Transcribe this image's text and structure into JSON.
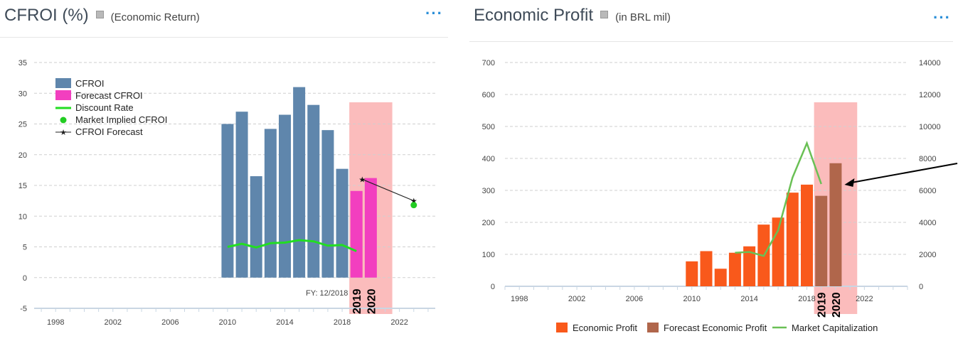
{
  "left": {
    "title": "CFROI (%)",
    "subtitle": "(Economic Return)",
    "menu": "···",
    "fy_label": "FY: 12/2018",
    "highlight_years": [
      "2019",
      "2020"
    ],
    "colors": {
      "cfroi": "#5f86ac",
      "forecast": "#f23fbf",
      "discount": "#22dd22",
      "implied": "#22cc22",
      "highlight": "#fbbcbc"
    },
    "chart_data": {
      "type": "bar",
      "x_ticks": [
        "1998",
        "2002",
        "2006",
        "2010",
        "2014",
        "2018",
        "2022"
      ],
      "xlim": [
        1996.5,
        2024.5
      ],
      "y_ticks": [
        "35",
        "30",
        "25",
        "20",
        "15",
        "10",
        "5",
        "0",
        "-5"
      ],
      "ylim": [
        -5,
        35
      ],
      "grid": true,
      "legend_position": "top-left",
      "legend": [
        "CFROI",
        "Forecast CFROI",
        "Discount Rate",
        "Market Implied CFROI",
        "CFROI Forecast"
      ],
      "cfroi": {
        "x": [
          2010,
          2011,
          2012,
          2013,
          2014,
          2015,
          2016,
          2017,
          2018
        ],
        "values": [
          25.0,
          27.0,
          16.5,
          24.2,
          26.5,
          31.0,
          28.1,
          24.0,
          17.7
        ]
      },
      "forecast_cfroi": {
        "x": [
          2019,
          2020
        ],
        "values": [
          14.1,
          16.2
        ]
      },
      "discount_rate": {
        "x": [
          2010,
          2011,
          2012,
          2013,
          2014,
          2015,
          2016,
          2017,
          2018,
          2019
        ],
        "values": [
          5.0,
          5.5,
          4.9,
          5.6,
          5.7,
          6.1,
          5.9,
          5.2,
          5.3,
          4.3
        ]
      },
      "cfroi_forecast": {
        "x": [
          2019.4,
          2023.0
        ],
        "values": [
          16.0,
          12.5
        ]
      },
      "market_implied": {
        "x": [
          2023.0
        ],
        "values": [
          11.8
        ]
      },
      "highlight_range": [
        2018.5,
        2021.5
      ]
    }
  },
  "right": {
    "title": "Economic Profit",
    "subtitle": "(in BRL mil)",
    "menu": "···",
    "highlight_years": [
      "2019",
      "2020"
    ],
    "colors": {
      "ep": "#f9591b",
      "forecast": "#b0664b",
      "mcap": "#6ac055",
      "highlight": "#fbbcbc"
    },
    "chart_data": {
      "type": "bar",
      "x_ticks": [
        "1998",
        "2002",
        "2006",
        "2010",
        "2014",
        "2018",
        "2022"
      ],
      "xlim": [
        1997,
        2025
      ],
      "y_ticks": [
        "700",
        "600",
        "500",
        "400",
        "300",
        "200",
        "100",
        "0"
      ],
      "ylim": [
        0,
        700
      ],
      "y2_ticks": [
        "14000",
        "12000",
        "10000",
        "8000",
        "6000",
        "4000",
        "2000",
        "0"
      ],
      "y2lim": [
        0,
        14000
      ],
      "grid": true,
      "legend_position": "bottom",
      "legend": [
        "Economic Profit",
        "Forecast Economic Profit",
        "Market Capitalization"
      ],
      "economic_profit": {
        "x": [
          2010,
          2011,
          2012,
          2013,
          2014,
          2015,
          2016,
          2017,
          2018
        ],
        "values": [
          78,
          110,
          55,
          105,
          125,
          193,
          215,
          293,
          318
        ]
      },
      "forecast_economic_profit": {
        "x": [
          2019,
          2020
        ],
        "values": [
          283,
          385
        ]
      },
      "market_cap": {
        "x": [
          2013,
          2014,
          2015,
          2016,
          2017,
          2018,
          2019
        ],
        "values": [
          2100,
          2150,
          1900,
          3500,
          6800,
          8950,
          6400
        ]
      },
      "highlight_range": [
        2018.5,
        2021.5
      ]
    }
  }
}
